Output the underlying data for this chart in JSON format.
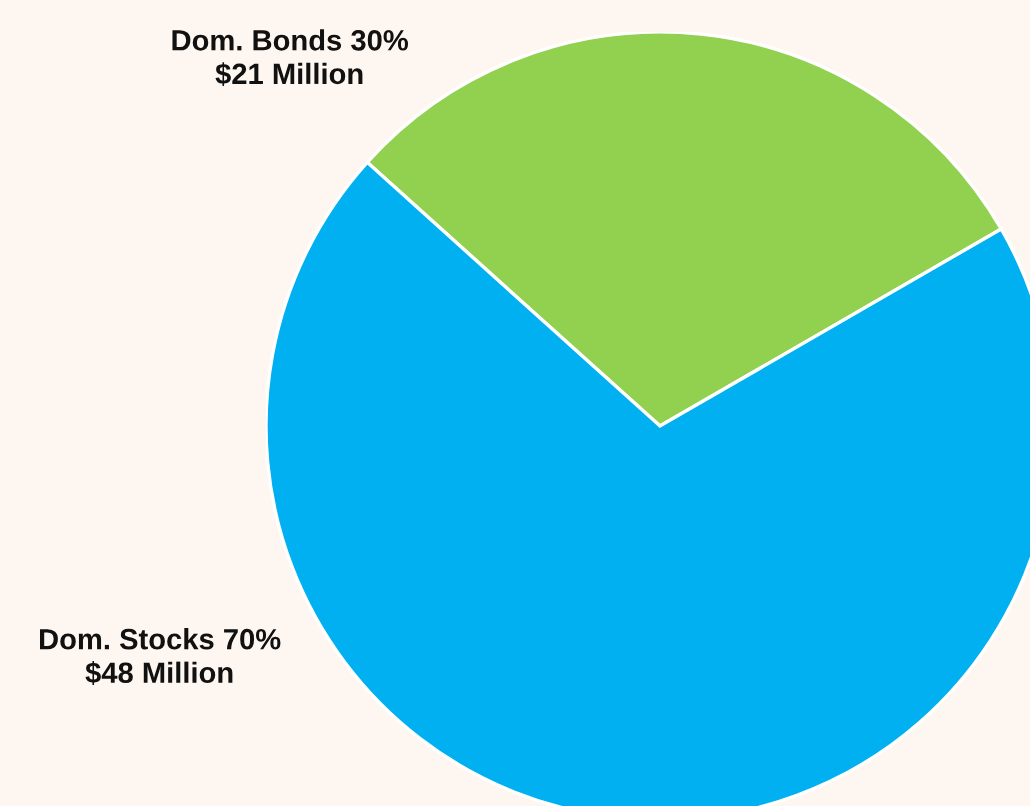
{
  "chart_data": {
    "type": "pie",
    "categories": [
      "Dom. Bonds",
      "Dom. Stocks"
    ],
    "values": [
      30,
      70
    ],
    "colors": [
      "#92d050",
      "#00b0f0"
    ],
    "value_labels": [
      "30%\n$21 Million",
      "70%\n$48 Million"
    ],
    "legend": false
  }
}
